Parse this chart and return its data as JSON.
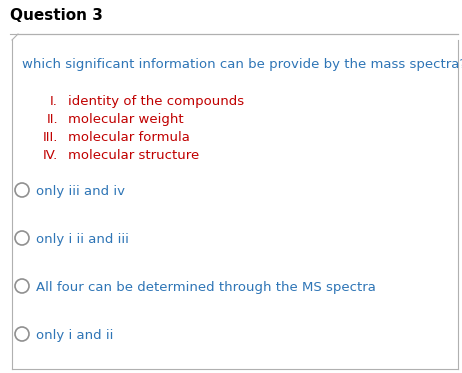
{
  "title": "Question 3",
  "title_fontsize": 11,
  "bg_color": "#ffffff",
  "border_color": "#b0b0b0",
  "question_text": "which significant information can be provide by the mass spectra?",
  "question_color": "#2e75b6",
  "question_fontsize": 9.5,
  "roman_items": [
    {
      "roman": "I.",
      "text": "identity of the compounds",
      "color": "#c00000"
    },
    {
      "roman": "II.",
      "text": "molecular weight",
      "color": "#c00000"
    },
    {
      "roman": "III.",
      "text": "molecular formula",
      "color": "#c00000"
    },
    {
      "roman": "IV.",
      "text": "molecular structure",
      "color": "#c00000"
    }
  ],
  "roman_fontsize": 9.5,
  "choices": [
    "only iii and iv",
    "only i ii and iii",
    "All four can be determined through the MS spectra",
    "only i and ii"
  ],
  "choices_fontsize": 9.5,
  "choices_color": "#2e75b6",
  "circle_color": "#909090"
}
